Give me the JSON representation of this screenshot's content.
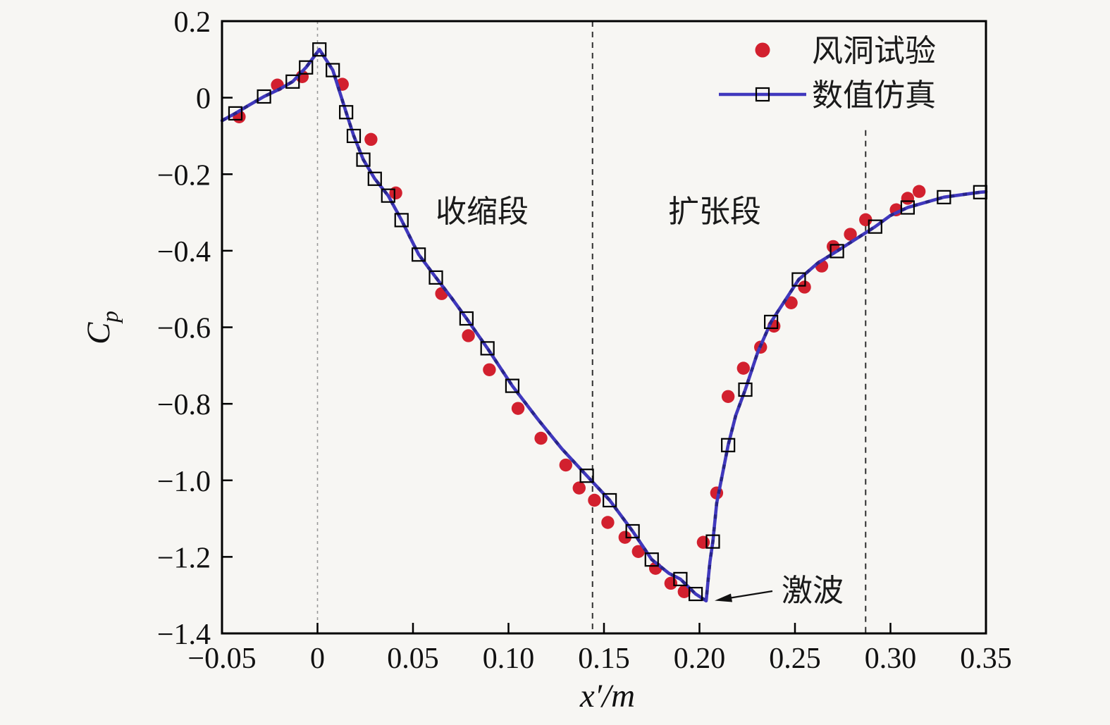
{
  "page": {
    "background": "#f7f6f3"
  },
  "chart_data": {
    "type": "line",
    "title": "",
    "xlabel": "x′/m",
    "ylabel": "Cp",
    "ylabel_main": "C",
    "ylabel_sub": "p",
    "xlim": [
      -0.05,
      0.35
    ],
    "ylim": [
      -1.4,
      0.2
    ],
    "grid": "off",
    "axis_color": "#000000",
    "xticks": {
      "values": [
        -0.05,
        0,
        0.05,
        0.1,
        0.15,
        0.2,
        0.25,
        0.3,
        0.35
      ],
      "labels": [
        "−0.05",
        "0",
        "0.05",
        "0.10",
        "0.15",
        "0.20",
        "0.25",
        "0.30",
        "0.35"
      ]
    },
    "yticks": {
      "values": [
        0.2,
        0,
        -0.2,
        -0.4,
        -0.6,
        -0.8,
        -1.0,
        -1.2,
        -1.4
      ],
      "labels": [
        "0.2",
        "0",
        "−0.2",
        "−0.4",
        "−0.6",
        "−0.8",
        "−1.0",
        "−1.2",
        "−1.4"
      ]
    },
    "legend": {
      "position": "top-right-inside",
      "items": [
        {
          "label": "风洞试验",
          "marker": "filled-circle",
          "color": "#d2202e"
        },
        {
          "label": "数值仿真",
          "marker": "open-square-on-line",
          "color": "#4038bd"
        }
      ]
    },
    "series": [
      {
        "name": "风洞试验",
        "type": "scatter",
        "marker": "filled-circle",
        "color": "#d2202e",
        "points": [
          [
            -0.041,
            -0.05
          ],
          [
            -0.021,
            0.033
          ],
          [
            -0.008,
            0.055
          ],
          [
            0.013,
            0.035
          ],
          [
            0.028,
            -0.109
          ],
          [
            0.041,
            -0.249
          ],
          [
            0.065,
            -0.512
          ],
          [
            0.079,
            -0.622
          ],
          [
            0.09,
            -0.711
          ],
          [
            0.105,
            -0.812
          ],
          [
            0.117,
            -0.89
          ],
          [
            0.13,
            -0.96
          ],
          [
            0.137,
            -1.02
          ],
          [
            0.145,
            -1.052
          ],
          [
            0.152,
            -1.11
          ],
          [
            0.161,
            -1.149
          ],
          [
            0.168,
            -1.186
          ],
          [
            0.177,
            -1.23
          ],
          [
            0.185,
            -1.269
          ],
          [
            0.192,
            -1.291
          ],
          [
            0.202,
            -1.162
          ],
          [
            0.209,
            -1.033
          ],
          [
            0.215,
            -0.781
          ],
          [
            0.223,
            -0.707
          ],
          [
            0.232,
            -0.652
          ],
          [
            0.239,
            -0.597
          ],
          [
            0.248,
            -0.536
          ],
          [
            0.255,
            -0.495
          ],
          [
            0.264,
            -0.44
          ],
          [
            0.27,
            -0.389
          ],
          [
            0.279,
            -0.357
          ],
          [
            0.287,
            -0.319
          ],
          [
            0.303,
            -0.293
          ],
          [
            0.309,
            -0.263
          ],
          [
            0.315,
            -0.245
          ]
        ]
      },
      {
        "name": "数值仿真",
        "type": "line",
        "marker": "open-square",
        "color": "#4038bd",
        "line_overlay_color": "#14145e",
        "marker_color": "#000000",
        "points": [
          [
            -0.05,
            -0.06
          ],
          [
            -0.043,
            -0.041
          ],
          [
            -0.036,
            -0.02
          ],
          [
            -0.028,
            0.003
          ],
          [
            -0.02,
            0.022
          ],
          [
            -0.013,
            0.042
          ],
          [
            -0.006,
            0.079
          ],
          [
            0.001,
            0.126
          ],
          [
            0.008,
            0.072
          ],
          [
            0.015,
            -0.038
          ],
          [
            0.019,
            -0.1
          ],
          [
            0.024,
            -0.162
          ],
          [
            0.03,
            -0.212
          ],
          [
            0.037,
            -0.256
          ],
          [
            0.044,
            -0.32
          ],
          [
            0.053,
            -0.41
          ],
          [
            0.062,
            -0.47
          ],
          [
            0.07,
            -0.522
          ],
          [
            0.078,
            -0.577
          ],
          [
            0.089,
            -0.655
          ],
          [
            0.102,
            -0.753
          ],
          [
            0.115,
            -0.838
          ],
          [
            0.128,
            -0.918
          ],
          [
            0.141,
            -0.988
          ],
          [
            0.153,
            -1.052
          ],
          [
            0.165,
            -1.133
          ],
          [
            0.175,
            -1.207
          ],
          [
            0.184,
            -1.243
          ],
          [
            0.19,
            -1.258
          ],
          [
            0.198,
            -1.297
          ],
          [
            0.2035,
            -1.315
          ],
          [
            0.2045,
            -1.262
          ],
          [
            0.2055,
            -1.212
          ],
          [
            0.207,
            -1.16
          ],
          [
            0.209,
            -1.06
          ],
          [
            0.215,
            -0.908
          ],
          [
            0.219,
            -0.83
          ],
          [
            0.224,
            -0.763
          ],
          [
            0.2305,
            -0.665
          ],
          [
            0.2375,
            -0.586
          ],
          [
            0.252,
            -0.475
          ],
          [
            0.262,
            -0.432
          ],
          [
            0.272,
            -0.401
          ],
          [
            0.292,
            -0.337
          ],
          [
            0.3,
            -0.308
          ],
          [
            0.309,
            -0.287
          ],
          [
            0.328,
            -0.26
          ],
          [
            0.347,
            -0.247
          ],
          [
            0.35,
            -0.246
          ]
        ],
        "marker_points": [
          [
            -0.043,
            -0.041
          ],
          [
            -0.028,
            0.003
          ],
          [
            -0.013,
            0.042
          ],
          [
            -0.006,
            0.079
          ],
          [
            0.001,
            0.126
          ],
          [
            0.008,
            0.072
          ],
          [
            0.015,
            -0.038
          ],
          [
            0.019,
            -0.1
          ],
          [
            0.024,
            -0.162
          ],
          [
            0.03,
            -0.212
          ],
          [
            0.037,
            -0.256
          ],
          [
            0.044,
            -0.32
          ],
          [
            0.053,
            -0.41
          ],
          [
            0.062,
            -0.47
          ],
          [
            0.078,
            -0.577
          ],
          [
            0.089,
            -0.655
          ],
          [
            0.102,
            -0.753
          ],
          [
            0.141,
            -0.988
          ],
          [
            0.153,
            -1.052
          ],
          [
            0.165,
            -1.133
          ],
          [
            0.175,
            -1.207
          ],
          [
            0.19,
            -1.258
          ],
          [
            0.198,
            -1.297
          ],
          [
            0.207,
            -1.16
          ],
          [
            0.215,
            -0.908
          ],
          [
            0.224,
            -0.763
          ],
          [
            0.2375,
            -0.586
          ],
          [
            0.252,
            -0.475
          ],
          [
            0.272,
            -0.401
          ],
          [
            0.292,
            -0.337
          ],
          [
            0.309,
            -0.287
          ],
          [
            0.328,
            -0.26
          ],
          [
            0.347,
            -0.247
          ]
        ]
      }
    ],
    "annotations": {
      "region_labels": [
        {
          "text": "收缩段",
          "x": 0.086,
          "y": -0.297
        },
        {
          "text": "扩张段",
          "x": 0.208,
          "y": -0.297
        }
      ],
      "shock_label": {
        "text": "激波",
        "x": 0.243,
        "y": -1.292,
        "arrow_to_x": 0.209,
        "arrow_to_y": -1.313
      },
      "vlines": [
        {
          "x": 0.0,
          "y_from": 0.2,
          "y_to": -1.4,
          "color": "#9a9a9a",
          "dash": "4 5",
          "width": 1.6
        },
        {
          "x": 0.144,
          "y_from": 0.2,
          "y_to": -1.4,
          "color": "#2f2f2f",
          "dash": "8 7",
          "width": 2
        },
        {
          "x": 0.287,
          "y_from": -0.085,
          "y_to": -1.4,
          "color": "#2f2f2f",
          "dash": "8 7",
          "width": 2
        }
      ]
    }
  }
}
